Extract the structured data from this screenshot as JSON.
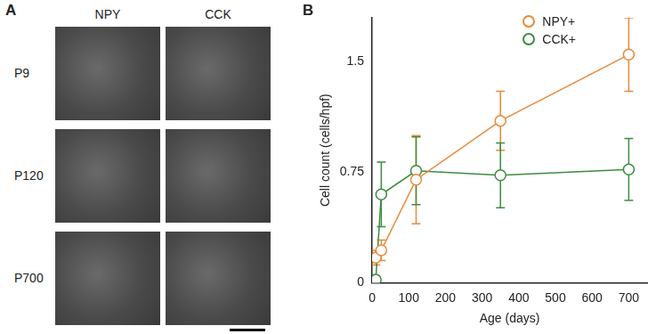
{
  "panels": [
    {
      "label": "A",
      "columns": [
        "NPY",
        "CCK"
      ],
      "rows": [
        "P9",
        "P120",
        "P700"
      ]
    },
    {
      "label": "B"
    }
  ],
  "chart_data": {
    "type": "line",
    "x": [
      10,
      25,
      120,
      350,
      700
    ],
    "series": [
      {
        "name": "NPY+",
        "color": "#e8893b",
        "marker": "circle",
        "values": [
          0.17,
          0.22,
          0.7,
          1.1,
          1.55
        ],
        "errors": [
          0.05,
          0.07,
          0.3,
          0.2,
          0.25
        ]
      },
      {
        "name": "CCK+",
        "color": "#3d8c40",
        "marker": "circle",
        "values": [
          0.02,
          0.6,
          0.76,
          0.73,
          0.77
        ],
        "errors": [
          0,
          0.22,
          0.23,
          0.22,
          0.21
        ]
      }
    ],
    "x_label": "Age (days)",
    "y_label": "Cell count (cells/hpf)",
    "xlim": [
      0,
      750
    ],
    "xticks": [
      0,
      100,
      200,
      300,
      400,
      500,
      600,
      700
    ],
    "ylim": [
      0,
      1.8
    ],
    "yticks": [
      0,
      0.75,
      1.5
    ],
    "grid": false,
    "legend": "upper right"
  }
}
